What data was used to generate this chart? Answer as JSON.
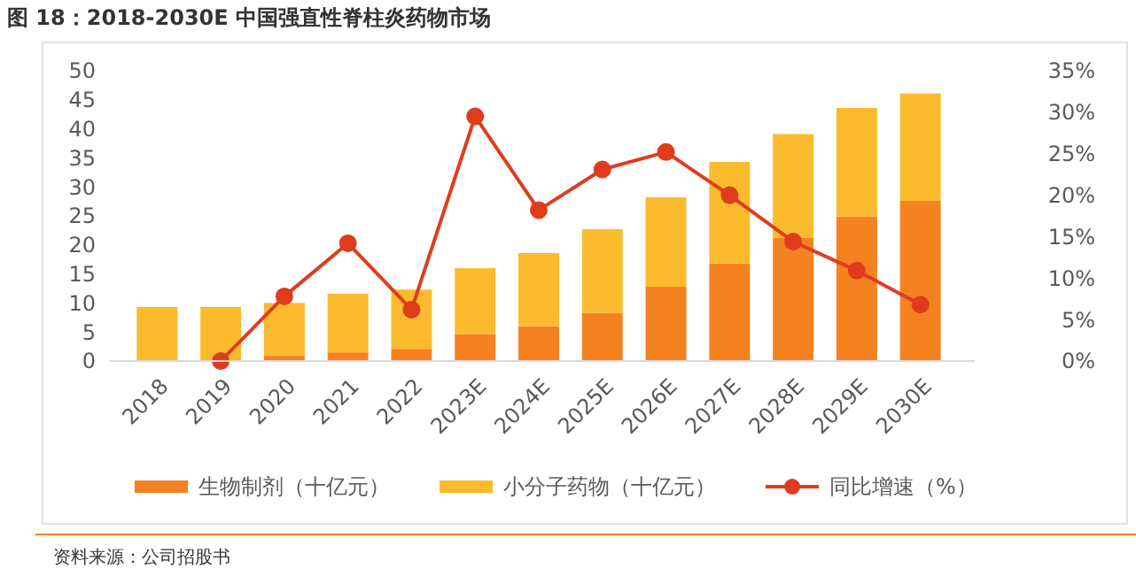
{
  "chart_data": {
    "type": "bar",
    "title": "图 18：2018-2030E 中国强直性脊柱炎药物市场",
    "stacked": true,
    "categories": [
      "2018",
      "2019",
      "2020",
      "2021",
      "2022",
      "2023E",
      "2024E",
      "2025E",
      "2026E",
      "2027E",
      "2028E",
      "2029E",
      "2030E"
    ],
    "series": [
      {
        "name": "生物制剂（十亿元）",
        "color": "#f58220",
        "values": [
          0,
          0,
          0.9,
          1.5,
          2.1,
          4.6,
          6.0,
          8.3,
          12.8,
          16.8,
          21.2,
          24.9,
          27.6
        ]
      },
      {
        "name": "小分子药物（十亿元）",
        "color": "#fbbb2d",
        "values": [
          9.3,
          9.3,
          9.1,
          10.1,
          10.2,
          11.4,
          12.6,
          14.4,
          15.4,
          17.5,
          17.9,
          18.7,
          18.5
        ]
      },
      {
        "name": "同比增速（%）",
        "type": "line",
        "axis": "y2",
        "color": "#e03c1c",
        "marker": "circle",
        "values": [
          null,
          0,
          7.8,
          14.2,
          6.2,
          29.5,
          18.2,
          23.1,
          25.2,
          20.0,
          14.4,
          10.9,
          6.8
        ]
      }
    ],
    "ylim": [
      0,
      50
    ],
    "yticks": [
      0,
      5,
      10,
      15,
      20,
      25,
      30,
      35,
      40,
      45,
      50
    ],
    "y2lim": [
      0,
      35
    ],
    "y2ticks": [
      {
        "value": 0,
        "label": "0%"
      },
      {
        "value": 5,
        "label": "5%"
      },
      {
        "value": 10,
        "label": "10%"
      },
      {
        "value": 15,
        "label": "15%"
      },
      {
        "value": 20,
        "label": "20%"
      },
      {
        "value": 25,
        "label": "25%"
      },
      {
        "value": 30,
        "label": "30%"
      },
      {
        "value": 35,
        "label": "35%"
      }
    ],
    "grid": false,
    "legend": "bottom",
    "annotations": [
      "资料来源：公司招股书"
    ]
  }
}
